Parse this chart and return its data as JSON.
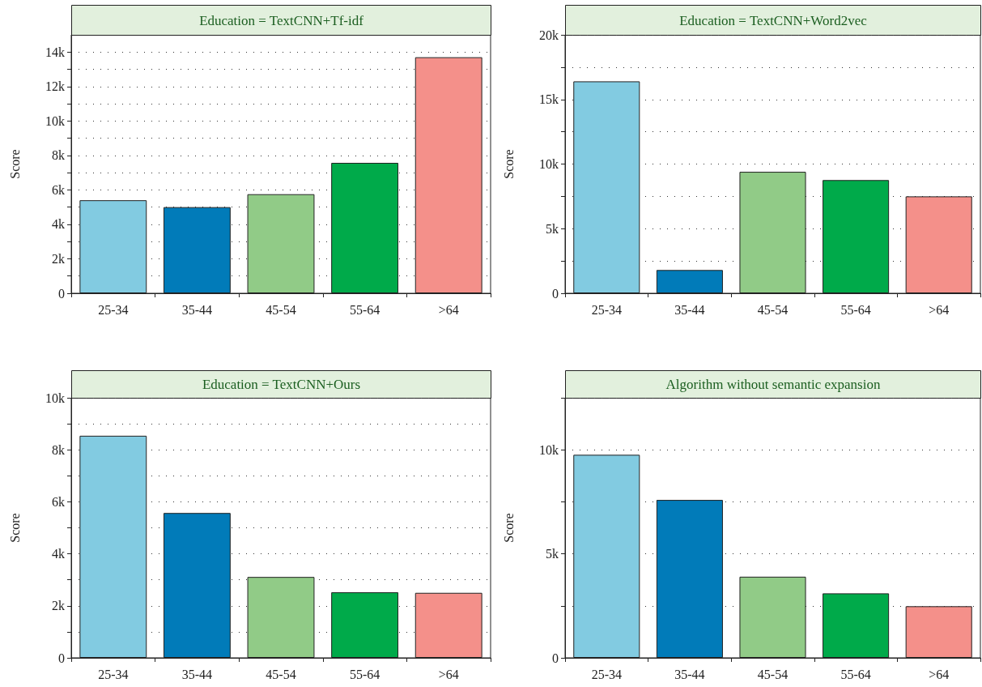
{
  "chart_data": [
    {
      "type": "bar",
      "title": "Education = TextCNN+Tf-idf",
      "ylabel": "Score",
      "categories": [
        "25-34",
        "35-44",
        "45-54",
        "55-64",
        ">64"
      ],
      "values": [
        5400,
        5000,
        5750,
        7570,
        13700
      ],
      "colors": [
        "#82cbe1",
        "#017bb9",
        "#91cb87",
        "#00aa4a",
        "#f4908a"
      ],
      "ylim": [
        0,
        15000
      ],
      "yticks": [
        {
          "value": 0,
          "label": "0"
        },
        {
          "value": 1000,
          "label": null
        },
        {
          "value": 2000,
          "label": "2k"
        },
        {
          "value": 3000,
          "label": null
        },
        {
          "value": 4000,
          "label": "4k"
        },
        {
          "value": 5000,
          "label": null
        },
        {
          "value": 6000,
          "label": "6k"
        },
        {
          "value": 7000,
          "label": null
        },
        {
          "value": 8000,
          "label": "8k"
        },
        {
          "value": 9000,
          "label": null
        },
        {
          "value": 10000,
          "label": "10k"
        },
        {
          "value": 11000,
          "label": null
        },
        {
          "value": 12000,
          "label": "12k"
        },
        {
          "value": 13000,
          "label": null
        },
        {
          "value": 14000,
          "label": "14k"
        }
      ],
      "grid": "y"
    },
    {
      "type": "bar",
      "title": "Education = TextCNN+Word2vec",
      "ylabel": "Score",
      "categories": [
        "25-34",
        "35-44",
        "45-54",
        "55-64",
        ">64"
      ],
      "values": [
        16400,
        1800,
        9400,
        8760,
        7500
      ],
      "colors": [
        "#82cbe1",
        "#017bb9",
        "#91cb87",
        "#00aa4a",
        "#f4908a"
      ],
      "ylim": [
        0,
        20000
      ],
      "yticks": [
        {
          "value": 0,
          "label": "0"
        },
        {
          "value": 2500,
          "label": null
        },
        {
          "value": 5000,
          "label": "5k"
        },
        {
          "value": 7500,
          "label": null
        },
        {
          "value": 10000,
          "label": "10k"
        },
        {
          "value": 12500,
          "label": null
        },
        {
          "value": 15000,
          "label": "15k"
        },
        {
          "value": 17500,
          "label": null
        },
        {
          "value": 20000,
          "label": "20k"
        }
      ],
      "grid": "y"
    },
    {
      "type": "bar",
      "title": "Education = TextCNN+Ours",
      "ylabel": "Score",
      "categories": [
        "25-34",
        "35-44",
        "45-54",
        "55-64",
        ">64"
      ],
      "values": [
        8540,
        5570,
        3110,
        2520,
        2500
      ],
      "colors": [
        "#82cbe1",
        "#017bb9",
        "#91cb87",
        "#00aa4a",
        "#f4908a"
      ],
      "ylim": [
        0,
        10000
      ],
      "yticks": [
        {
          "value": 0,
          "label": "0"
        },
        {
          "value": 1000,
          "label": null
        },
        {
          "value": 2000,
          "label": "2k"
        },
        {
          "value": 3000,
          "label": null
        },
        {
          "value": 4000,
          "label": "4k"
        },
        {
          "value": 5000,
          "label": null
        },
        {
          "value": 6000,
          "label": "6k"
        },
        {
          "value": 7000,
          "label": null
        },
        {
          "value": 8000,
          "label": "8k"
        },
        {
          "value": 9000,
          "label": null
        },
        {
          "value": 10000,
          "label": "10k"
        }
      ],
      "grid": "y"
    },
    {
      "type": "bar",
      "title": "Algorithm without semantic expansion",
      "ylabel": "Score",
      "categories": [
        "25-34",
        "35-44",
        "45-54",
        "55-64",
        ">64"
      ],
      "values": [
        9760,
        7590,
        3900,
        3100,
        2480
      ],
      "colors": [
        "#82cbe1",
        "#017bb9",
        "#91cb87",
        "#00aa4a",
        "#f4908a"
      ],
      "ylim": [
        0,
        12500
      ],
      "yticks": [
        {
          "value": 0,
          "label": "0"
        },
        {
          "value": 2500,
          "label": null
        },
        {
          "value": 5000,
          "label": "5k"
        },
        {
          "value": 7500,
          "label": null
        },
        {
          "value": 10000,
          "label": "10k"
        },
        {
          "value": 12500,
          "label": null
        }
      ],
      "grid": "y"
    }
  ]
}
